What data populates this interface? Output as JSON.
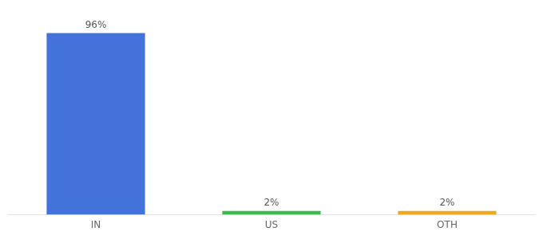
{
  "chart_data": {
    "type": "bar",
    "categories": [
      "IN",
      "US",
      "OTH"
    ],
    "values": [
      96,
      2,
      2
    ],
    "value_labels": [
      "96%",
      "2%",
      "2%"
    ],
    "data_labels": true,
    "colors": [
      "#4472db",
      "#3dba4e",
      "#f0a820"
    ],
    "ylim": [
      0,
      105
    ],
    "tick_labels": "x",
    "grid": false
  }
}
